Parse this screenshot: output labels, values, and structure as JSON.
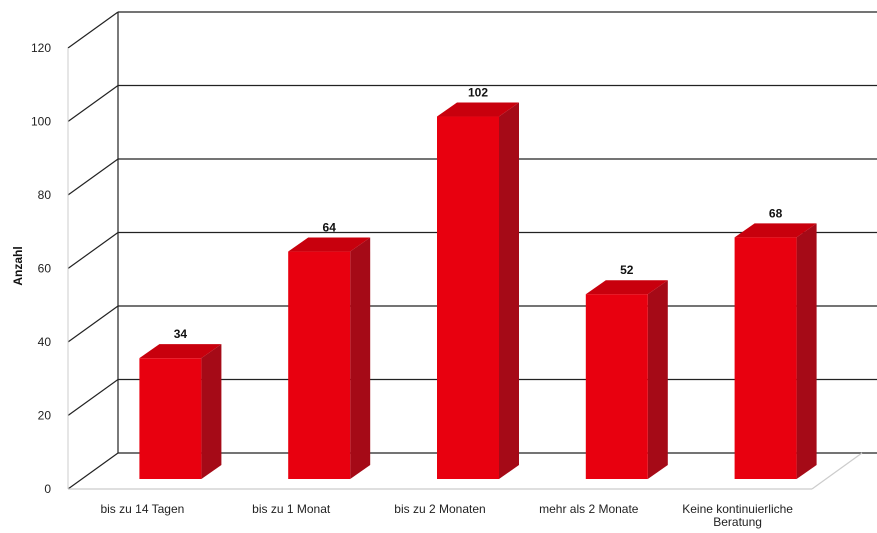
{
  "chart_data": {
    "type": "bar",
    "style": "3d",
    "title": "",
    "ylabel": "Anzahl",
    "xlabel": "",
    "ylim": [
      0,
      120
    ],
    "yticks": [
      0,
      20,
      40,
      60,
      80,
      100,
      120
    ],
    "grid": true,
    "legend": "none",
    "categories": [
      [
        "bis zu 14 Tagen"
      ],
      [
        "bis zu 1 Monat"
      ],
      [
        "bis zu 2 Monaten"
      ],
      [
        "mehr als 2 Monate"
      ],
      [
        "Keine kontinuierliche",
        "Beratung"
      ]
    ],
    "values": [
      34,
      64,
      102,
      52,
      68
    ],
    "colors": {
      "front": "#e8000f",
      "side": "#a50a17",
      "top": "#c8000d",
      "grid": "#222222"
    }
  }
}
